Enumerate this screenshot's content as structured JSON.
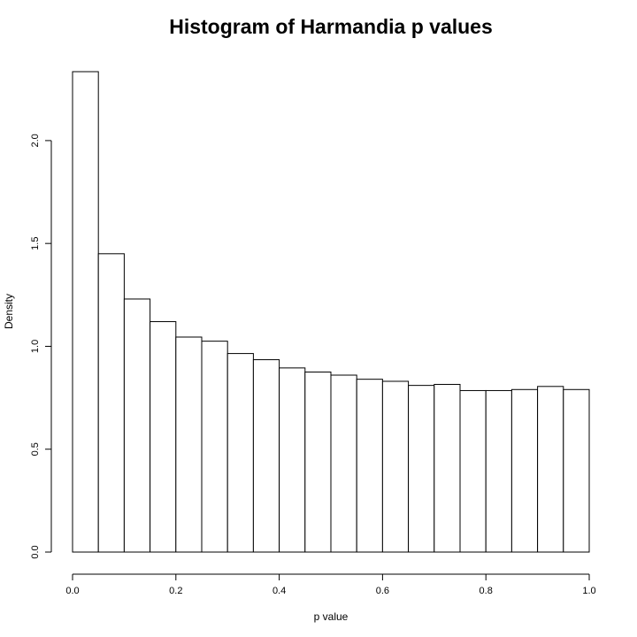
{
  "chart_data": {
    "type": "bar",
    "title": "Histogram of Harmandia p values",
    "xlabel": "p value",
    "ylabel": "Density",
    "bin_edges": [
      0.0,
      0.05,
      0.1,
      0.15,
      0.2,
      0.25,
      0.3,
      0.35,
      0.4,
      0.45,
      0.5,
      0.55,
      0.6,
      0.65,
      0.7,
      0.75,
      0.8,
      0.85,
      0.9,
      0.95,
      1.0
    ],
    "values": [
      2.335,
      1.45,
      1.23,
      1.12,
      1.045,
      1.025,
      0.965,
      0.935,
      0.895,
      0.875,
      0.86,
      0.84,
      0.83,
      0.81,
      0.815,
      0.785,
      0.785,
      0.79,
      0.805,
      0.79
    ],
    "xlim": [
      0.0,
      1.0
    ],
    "ylim": [
      0.0,
      2.335
    ],
    "x_ticks": [
      0.0,
      0.2,
      0.4,
      0.6,
      0.8,
      1.0
    ],
    "x_tick_labels": [
      "0.0",
      "0.2",
      "0.4",
      "0.6",
      "0.8",
      "1.0"
    ],
    "y_ticks": [
      0.0,
      0.5,
      1.0,
      1.5,
      2.0
    ],
    "y_tick_labels": [
      "0.0",
      "0.5",
      "1.0",
      "1.5",
      "2.0"
    ],
    "grid": false,
    "legend": "none",
    "colors": {
      "bar_fill": "#ffffff",
      "bar_stroke": "#000000"
    }
  }
}
